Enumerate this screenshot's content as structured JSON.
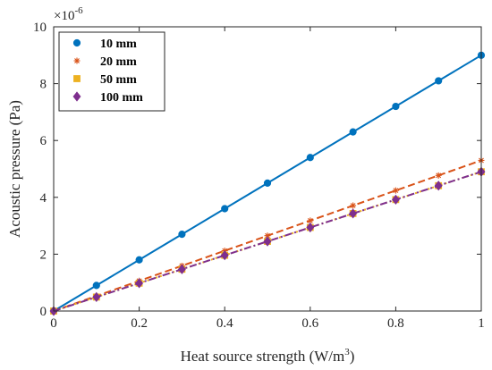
{
  "chart_data": {
    "type": "line",
    "xlabel": "Heat source strength (W/m",
    "xlabel_sup": "3",
    "xlabel_close": ")",
    "ylabel": "Acoustic pressure (Pa)",
    "y_multiplier_base": "×10",
    "y_multiplier_exp": "-6",
    "xlim": [
      0,
      1
    ],
    "ylim": [
      0,
      10
    ],
    "x_ticks": [
      "0",
      "0.2",
      "0.4",
      "0.6",
      "0.8",
      "1"
    ],
    "y_ticks": [
      "0",
      "2",
      "4",
      "6",
      "8",
      "10"
    ],
    "x_tick_values": [
      0,
      0.2,
      0.4,
      0.6,
      0.8,
      1
    ],
    "y_tick_values": [
      0,
      2,
      4,
      6,
      8,
      10
    ],
    "grid": false,
    "legend_position": "top-left",
    "x": [
      0,
      0.1,
      0.2,
      0.3,
      0.4,
      0.5,
      0.6,
      0.7,
      0.8,
      0.9,
      1.0
    ],
    "series": [
      {
        "name": "10 mm",
        "color": "#0072bd",
        "marker": "circle",
        "line_style": "solid",
        "values": [
          0,
          0.9,
          1.8,
          2.7,
          3.6,
          4.5,
          5.4,
          6.3,
          7.2,
          8.1,
          9.0
        ]
      },
      {
        "name": "20 mm",
        "color": "#d95319",
        "marker": "asterisk",
        "line_style": "dashed",
        "values": [
          0,
          0.53,
          1.06,
          1.59,
          2.12,
          2.65,
          3.18,
          3.71,
          4.24,
          4.77,
          5.3
        ]
      },
      {
        "name": "50 mm",
        "color": "#edb120",
        "marker": "square",
        "line_style": "dotted",
        "values": [
          0,
          0.49,
          0.98,
          1.47,
          1.96,
          2.45,
          2.94,
          3.43,
          3.92,
          4.41,
          4.9
        ]
      },
      {
        "name": "100 mm",
        "color": "#7e2f8e",
        "marker": "diamond",
        "line_style": "dashdot",
        "values": [
          0,
          0.49,
          0.98,
          1.47,
          1.96,
          2.45,
          2.94,
          3.43,
          3.92,
          4.41,
          4.9
        ]
      }
    ]
  }
}
